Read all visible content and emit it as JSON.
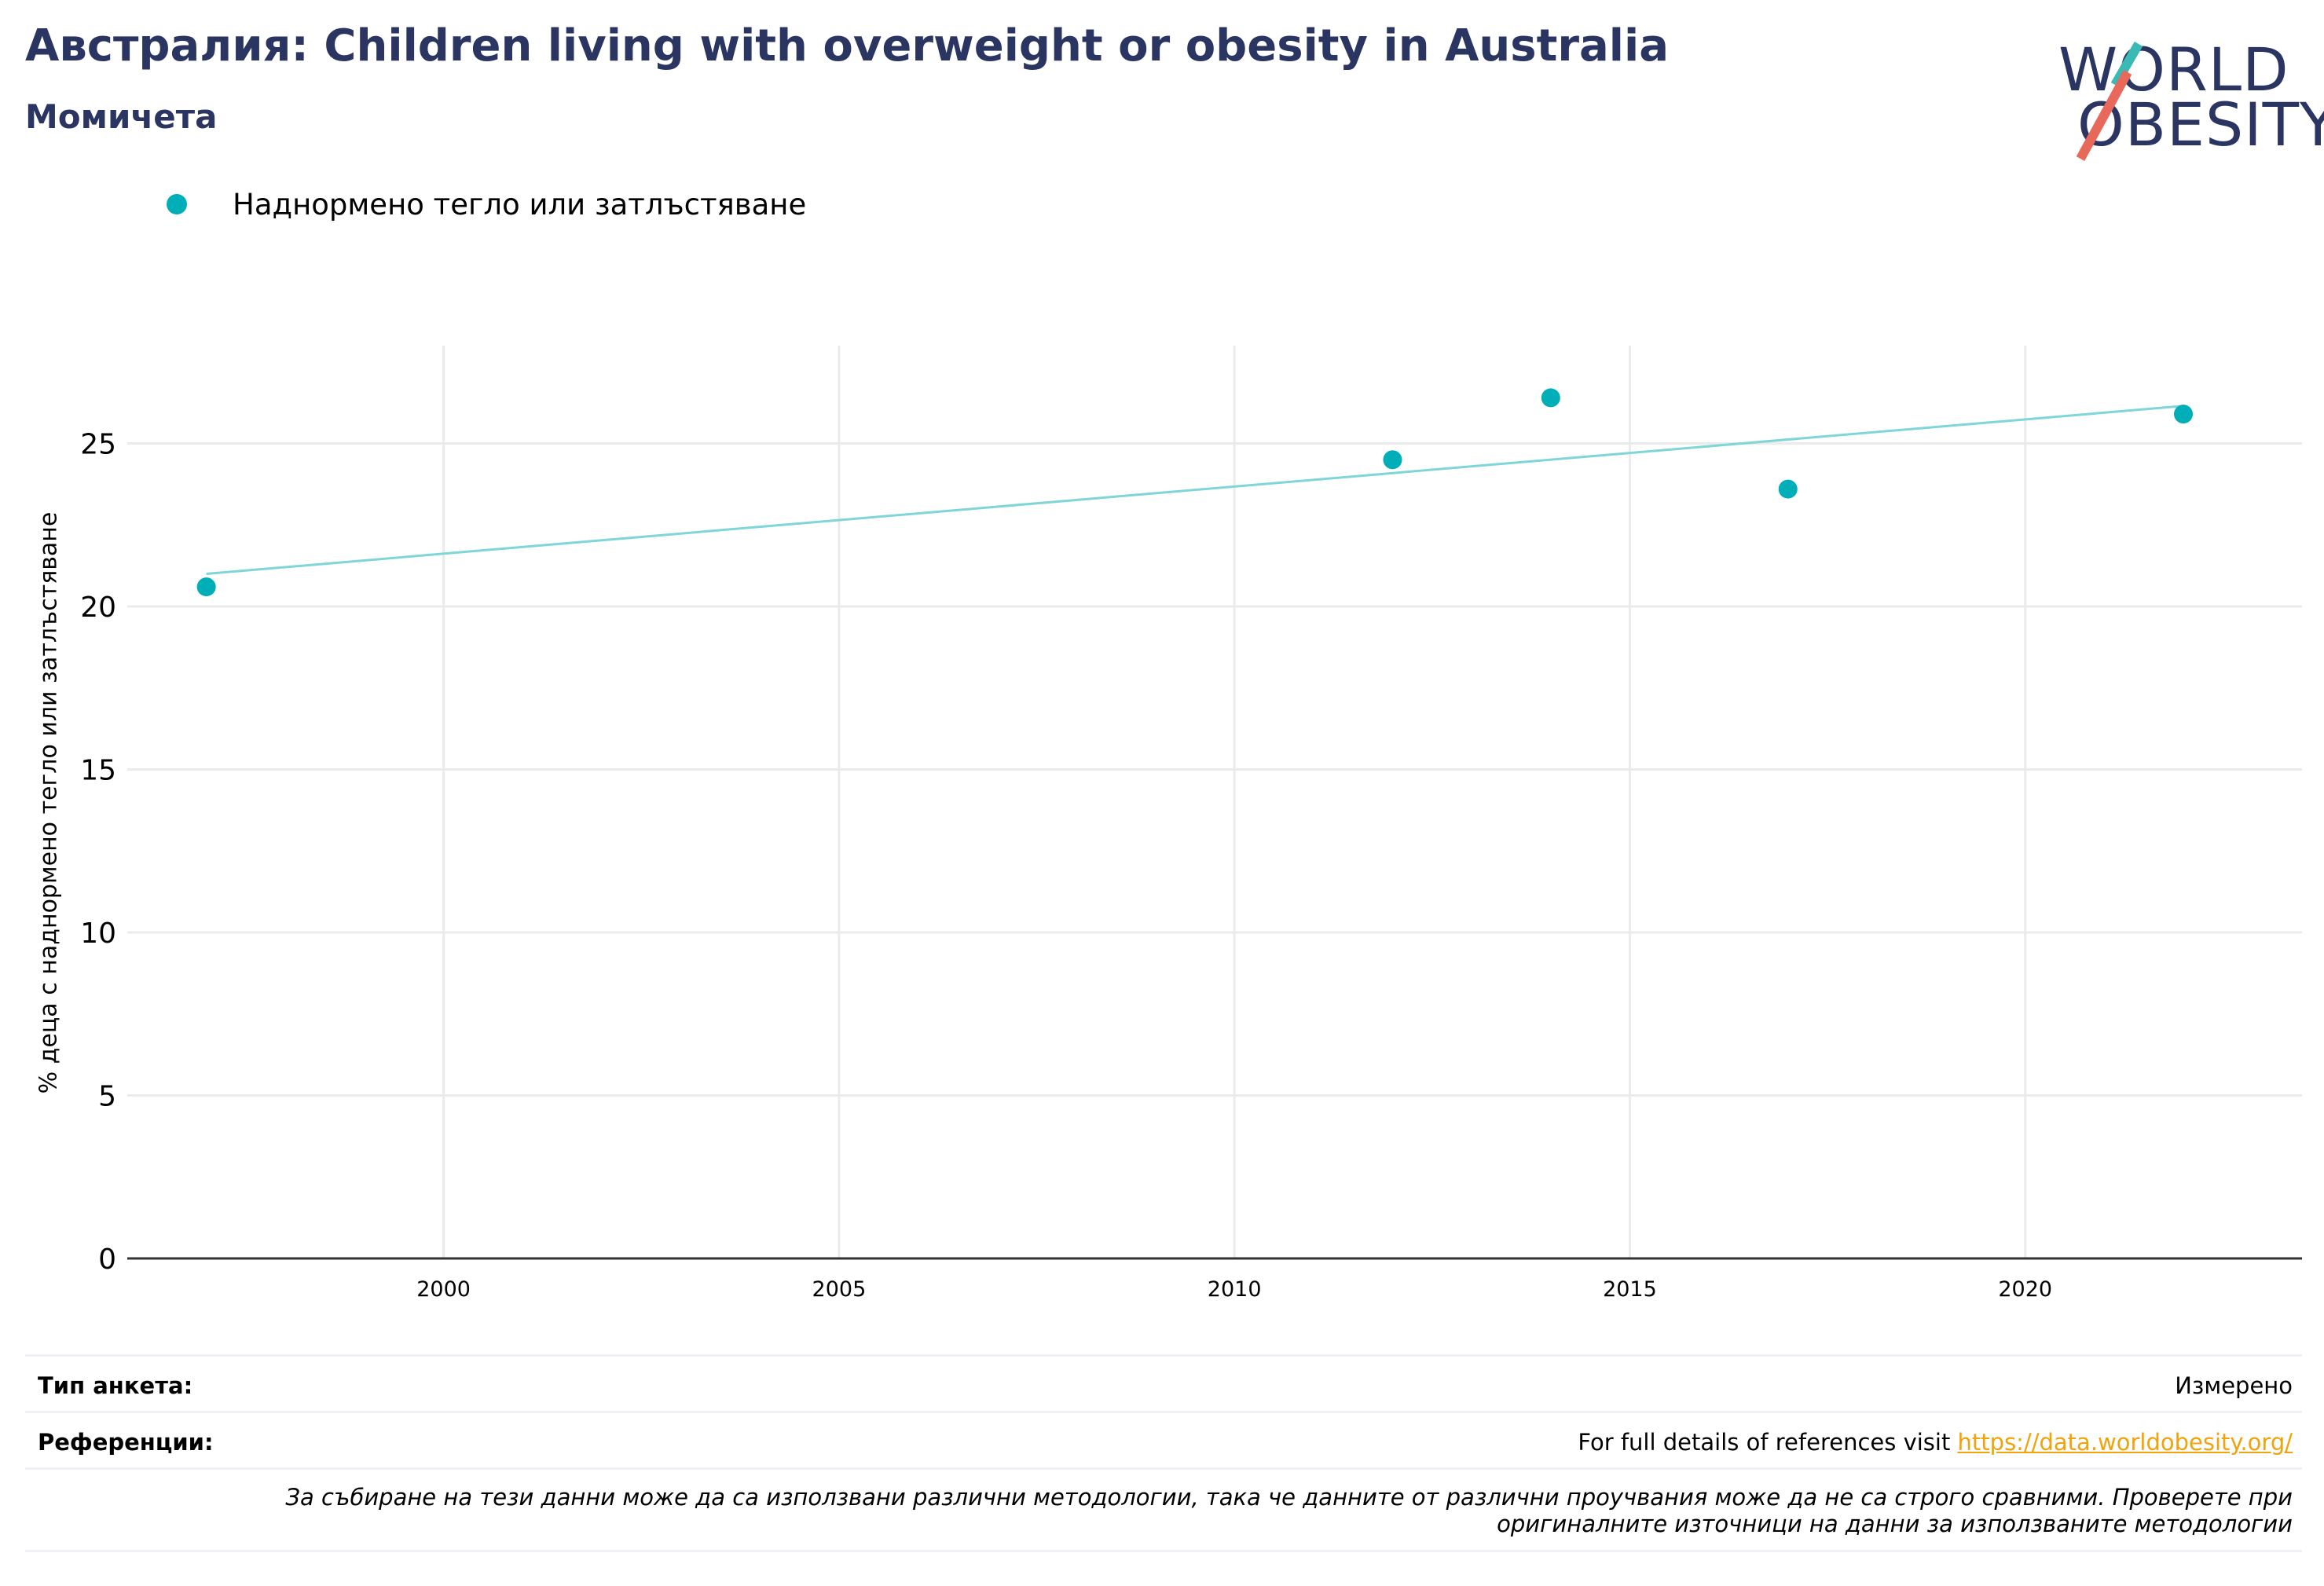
{
  "header": {
    "title": "Австралия: Children living with overweight or obesity in Australia",
    "subtitle": "Момичета"
  },
  "logo": {
    "line1": "WORLD",
    "line2": "OBESITY",
    "colors": {
      "text": "#2b3562",
      "slash_top": "#3ab9b5",
      "slash_bottom": "#e8685a"
    }
  },
  "legend": {
    "items": [
      {
        "label": "Наднормено тегло или затлъстяване",
        "color": "#00aeb8"
      }
    ]
  },
  "chart_data": {
    "type": "scatter",
    "title": "Австралия: Children living with overweight or obesity in Australia",
    "subtitle": "Момичета",
    "xlabel": "",
    "ylabel": "% деца с наднормено тегло или затлъстяване",
    "xlim": [
      1996,
      2023.5
    ],
    "ylim": [
      0,
      28
    ],
    "x_ticks": [
      2000,
      2005,
      2010,
      2015,
      2020
    ],
    "y_ticks": [
      0,
      5,
      10,
      15,
      20,
      25
    ],
    "grid": true,
    "legend_position": "top-left",
    "series": [
      {
        "name": "Наднормено тегло или затлъстяване",
        "color": "#00aeb8",
        "points": [
          {
            "x": 1997,
            "y": 20.6
          },
          {
            "x": 2012,
            "y": 24.5
          },
          {
            "x": 2014,
            "y": 26.4
          },
          {
            "x": 2017,
            "y": 23.6
          },
          {
            "x": 2022,
            "y": 25.9
          }
        ]
      }
    ],
    "trendline": {
      "color": "#7fd6da",
      "x": [
        1997,
        2022
      ],
      "y": [
        21.0,
        26.15
      ]
    }
  },
  "footer": {
    "survey_type_label": "Тип анкета:",
    "survey_type_value": "Измерено",
    "references_label": "Референции:",
    "references_text": "For full details of references visit ",
    "references_link": "https://data.worldobesity.org/",
    "note": "За събиране на тези данни може да са използвани различни методологии, така че данните от различни проучвания може да не са строго сравними. Проверете при оригиналните източници на данни за използваните методологии"
  }
}
